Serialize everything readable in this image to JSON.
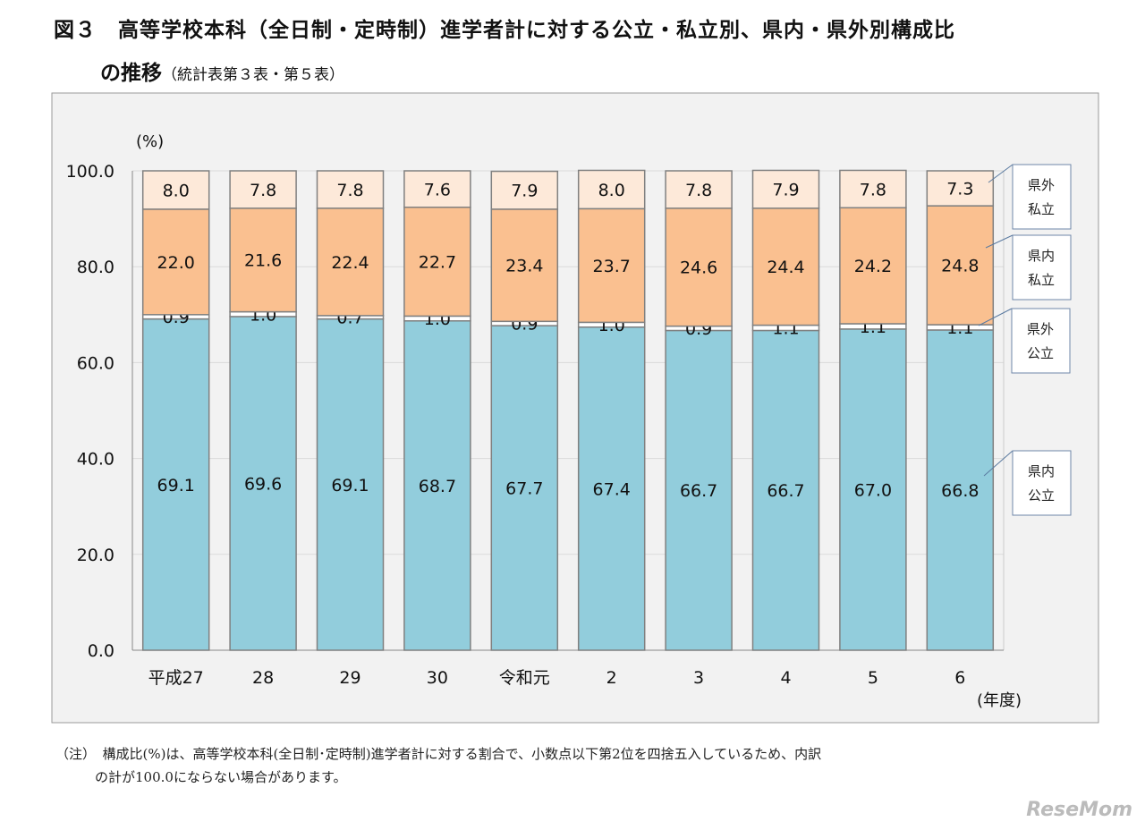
{
  "title": "図３　高等学校本科（全日制・定時制）進学者計に対する公立・私立別、県内・県外別構成比",
  "title2": "の推移",
  "title2_sub": "（統計表第３表・第５表）",
  "note_line1": "（注）　構成比(%)は、高等学校本科(全日制･定時制)進学者計に対する割合で、小数点以下第2位を四捨五入しているため、内訳",
  "note_line2": "の計が100.0にならない場合があります。",
  "logo": "ReseMom",
  "chart_data": {
    "type": "stacked-bar",
    "ylabel": "(%)",
    "xlabel": "(年度)",
    "ylim": [
      0,
      100
    ],
    "yticks": [
      "0.0",
      "20.0",
      "40.0",
      "60.0",
      "80.0",
      "100.0"
    ],
    "grid": true,
    "legend_placement": "right",
    "categories": [
      "平成27",
      "28",
      "29",
      "30",
      "令和元",
      "2",
      "3",
      "4",
      "5",
      "6"
    ],
    "series": [
      {
        "name": "県内公立",
        "color": "#92cddc",
        "values": [
          69.1,
          69.6,
          69.1,
          68.7,
          67.7,
          67.4,
          66.7,
          66.7,
          67.0,
          66.8
        ]
      },
      {
        "name": "県外公立",
        "color": "#ffffff",
        "values": [
          0.9,
          1.0,
          0.7,
          1.0,
          0.9,
          1.0,
          0.9,
          1.1,
          1.1,
          1.1
        ]
      },
      {
        "name": "県内私立",
        "color": "#fac090",
        "values": [
          22.0,
          21.6,
          22.4,
          22.7,
          23.4,
          23.7,
          24.6,
          24.4,
          24.2,
          24.8
        ]
      },
      {
        "name": "県外私立",
        "color": "#fde9d9",
        "values": [
          8.0,
          7.8,
          7.8,
          7.6,
          7.9,
          8.0,
          7.8,
          7.9,
          7.8,
          7.3
        ]
      }
    ],
    "legend_labels": [
      [
        "県外",
        "私立"
      ],
      [
        "県内",
        "私立"
      ],
      [
        "県外",
        "公立"
      ],
      [
        "県内",
        "公立"
      ]
    ]
  }
}
